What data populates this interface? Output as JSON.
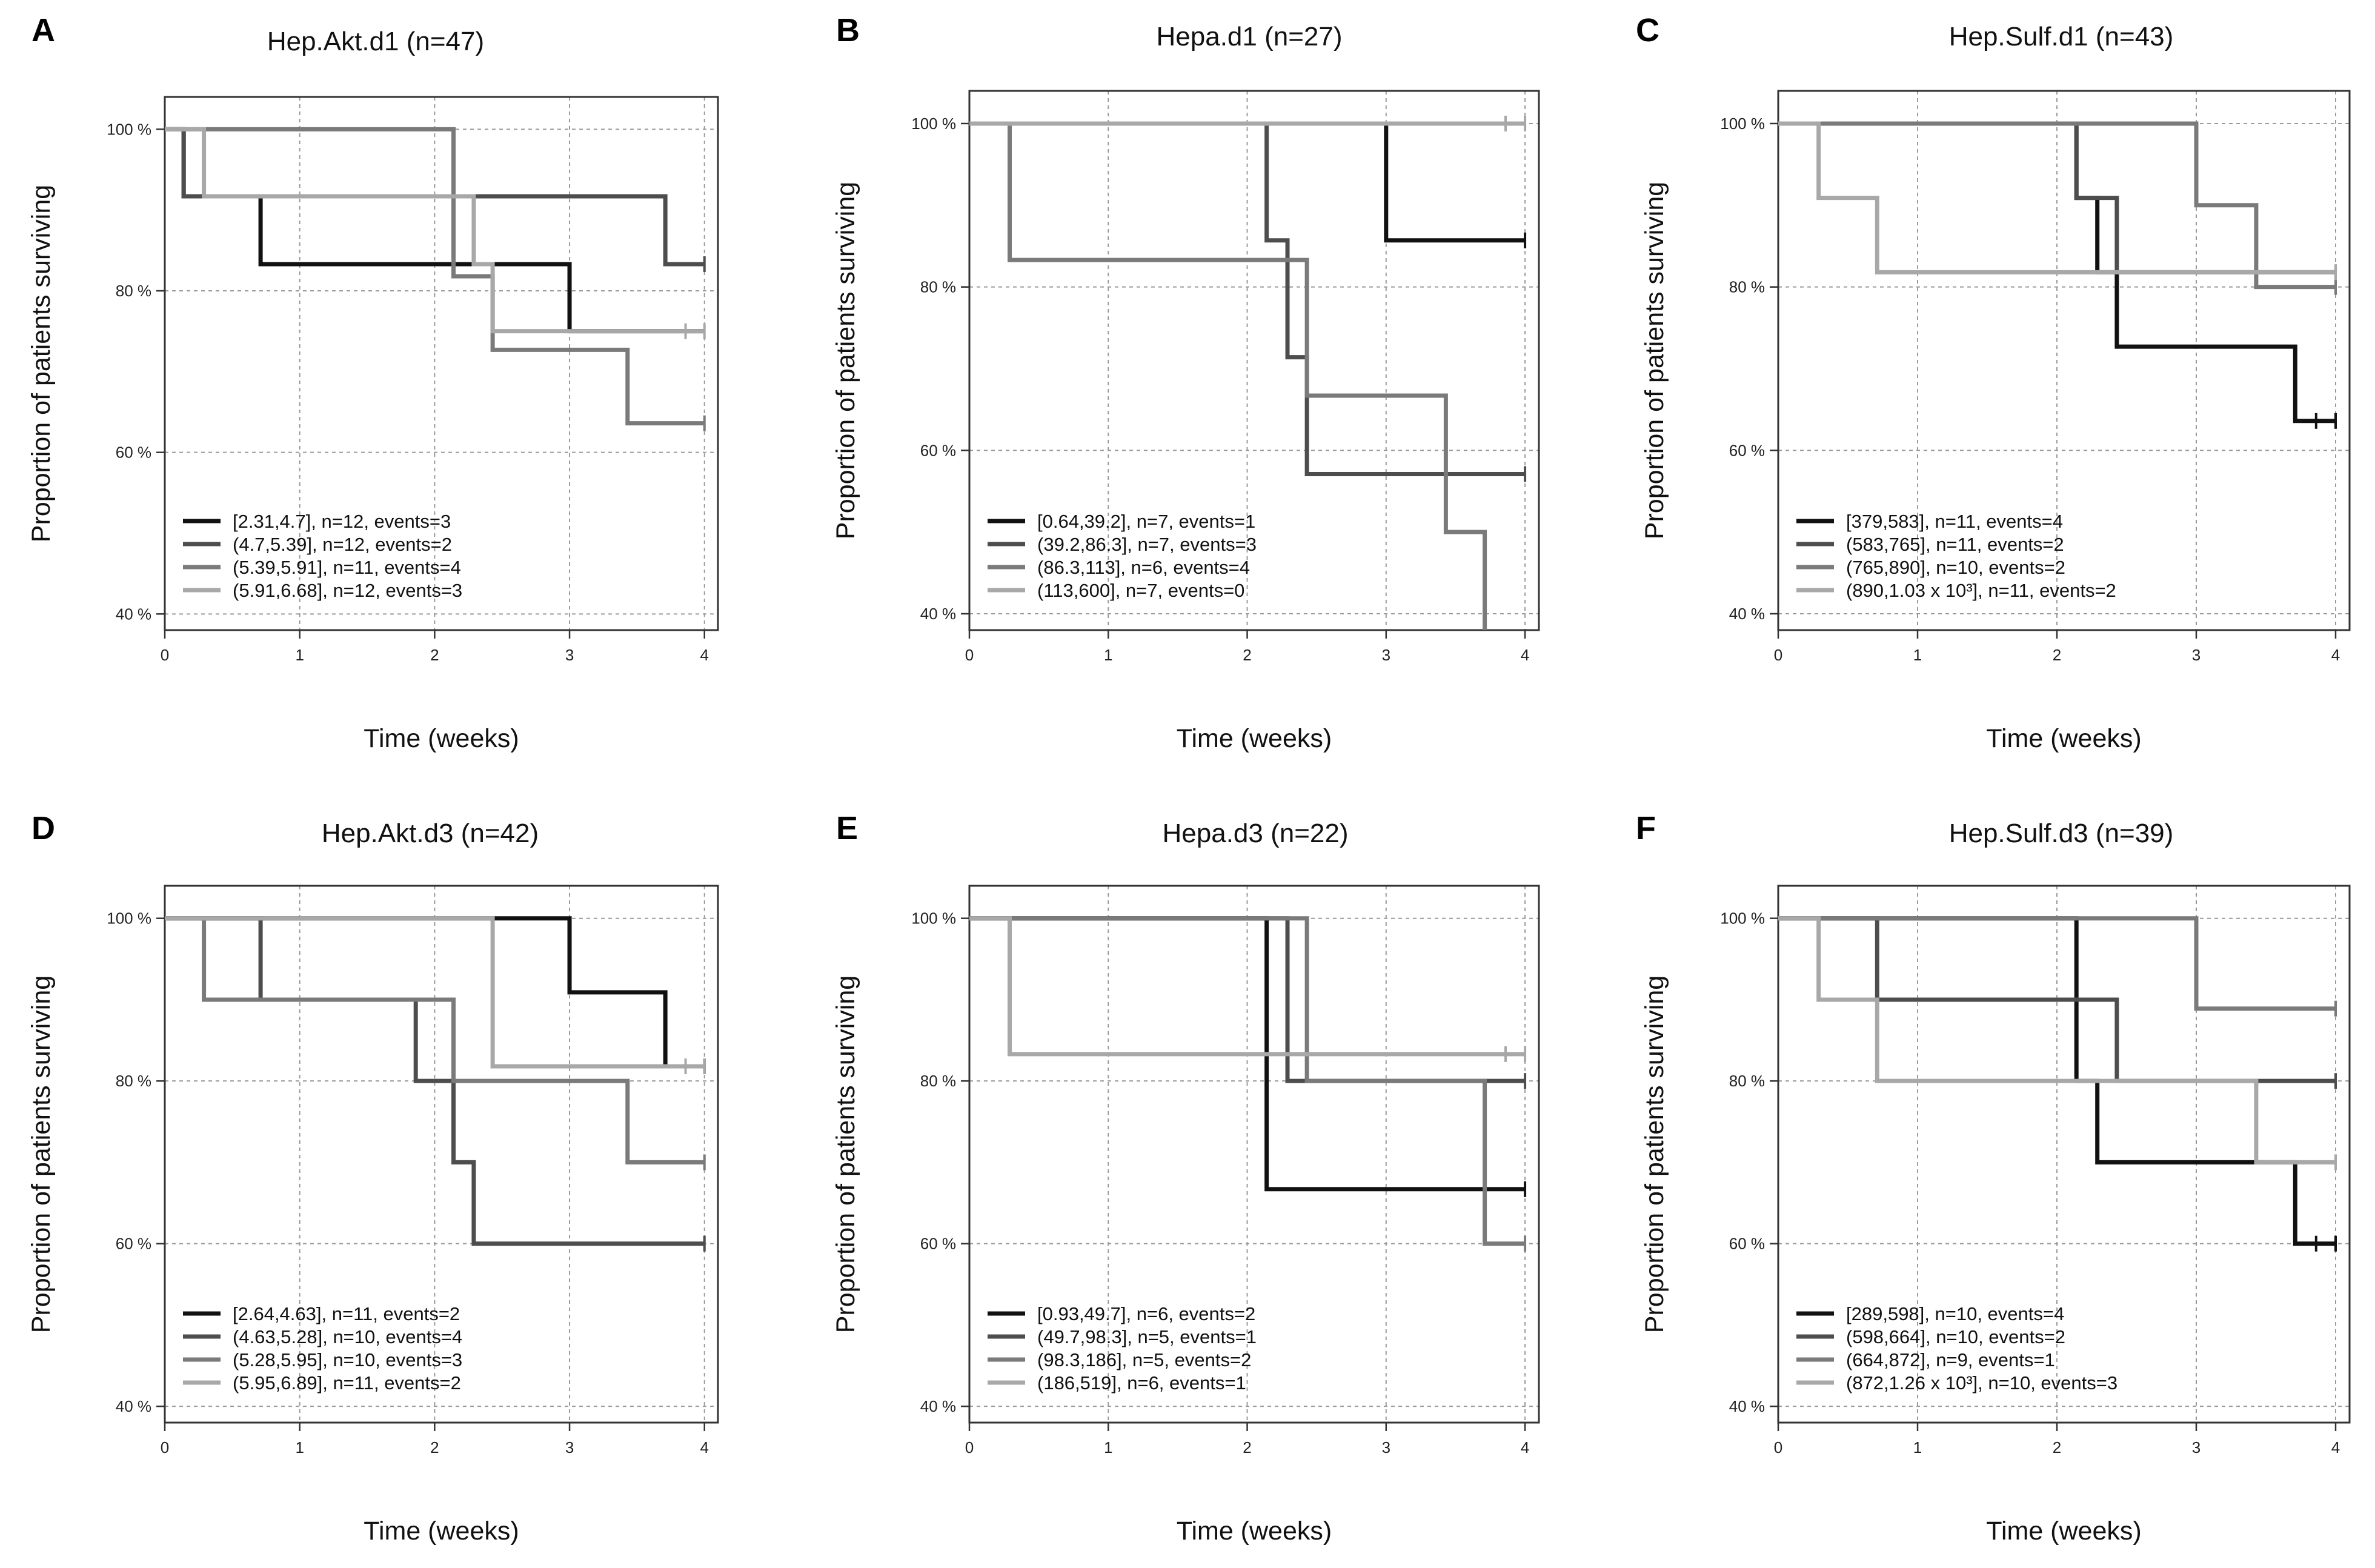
{
  "figure": {
    "x_axis_label": "Time (weeks)",
    "y_axis_label": "Proportion of patients surviving"
  },
  "chart_data": [
    {
      "type": "line",
      "subtype": "kaplan-meier",
      "letter": "A",
      "title": "Hep.Akt.d1  (n=47)",
      "xlabel": "Time (weeks)",
      "ylabel": "Proportion of patients surviving",
      "xlim": [
        0,
        4.1
      ],
      "ylim": [
        0.38,
        1.04
      ],
      "x_ticks": [
        "0",
        "1",
        "2",
        "3",
        "4"
      ],
      "y_ticks": [
        "40 %",
        "60 %",
        "80 %",
        "100 %"
      ],
      "legend_position": "bottom-left",
      "series": [
        {
          "name": "[2.31,4.7], n=12, events=3",
          "color": "#111111",
          "points": [
            [
              0,
              1.0
            ],
            [
              0.14,
              0.917
            ],
            [
              0.71,
              0.833
            ],
            [
              3.0,
              0.75
            ],
            [
              4.0,
              0.75
            ]
          ],
          "censored": []
        },
        {
          "name": "(4.7,5.39], n=12, events=2",
          "color": "#4d4d4d",
          "points": [
            [
              0,
              1.0
            ],
            [
              0.14,
              0.917
            ],
            [
              3.71,
              0.833
            ],
            [
              4.0,
              0.833
            ]
          ],
          "censored": [
            4.0
          ]
        },
        {
          "name": "(5.39,5.91], n=11, events=4",
          "color": "#7a7a7a",
          "points": [
            [
              0,
              1.0
            ],
            [
              2.14,
              0.818
            ],
            [
              2.43,
              0.727
            ],
            [
              3.43,
              0.636
            ],
            [
              4.0,
              0.636
            ]
          ],
          "censored": [
            4.0
          ]
        },
        {
          "name": "(5.91,6.68], n=12, events=3",
          "color": "#a8a8a8",
          "points": [
            [
              0,
              1.0
            ],
            [
              0.29,
              0.917
            ],
            [
              2.29,
              0.833
            ],
            [
              2.43,
              0.75
            ],
            [
              4.0,
              0.75
            ]
          ],
          "censored": [
            3.86,
            4.0
          ]
        }
      ]
    },
    {
      "type": "line",
      "subtype": "kaplan-meier",
      "letter": "B",
      "title": "Hepa.d1  (n=27)",
      "xlabel": "Time (weeks)",
      "ylabel": "Proportion of patients surviving",
      "xlim": [
        0,
        4.1
      ],
      "ylim": [
        0.38,
        1.04
      ],
      "x_ticks": [
        "0",
        "1",
        "2",
        "3",
        "4"
      ],
      "y_ticks": [
        "40 %",
        "60 %",
        "80 %",
        "100 %"
      ],
      "legend_position": "bottom-left",
      "series": [
        {
          "name": "[0.64,39.2], n=7, events=1",
          "color": "#111111",
          "points": [
            [
              0,
              1.0
            ],
            [
              3.0,
              0.857
            ],
            [
              4.0,
              0.857
            ]
          ],
          "censored": [
            4.0
          ]
        },
        {
          "name": "(39.2,86.3], n=7, events=3",
          "color": "#4d4d4d",
          "points": [
            [
              0,
              1.0
            ],
            [
              2.14,
              0.857
            ],
            [
              2.29,
              0.714
            ],
            [
              2.43,
              0.571
            ],
            [
              4.0,
              0.571
            ]
          ],
          "censored": [
            4.0
          ]
        },
        {
          "name": "(86.3,113], n=6, events=4",
          "color": "#7a7a7a",
          "points": [
            [
              0,
              1.0
            ],
            [
              0.29,
              0.833
            ],
            [
              2.43,
              0.667
            ],
            [
              3.43,
              0.5
            ],
            [
              3.71,
              0.38
            ]
          ],
          "censored": []
        },
        {
          "name": "(113,600], n=7, events=0",
          "color": "#a8a8a8",
          "points": [
            [
              0,
              1.0
            ],
            [
              4.0,
              1.0
            ]
          ],
          "censored": [
            3.86,
            4.0
          ]
        }
      ]
    },
    {
      "type": "line",
      "subtype": "kaplan-meier",
      "letter": "C",
      "title": "Hep.Sulf.d1  (n=43)",
      "xlabel": "Time (weeks)",
      "ylabel": "Proportion of patients surviving",
      "xlim": [
        0,
        4.1
      ],
      "ylim": [
        0.38,
        1.04
      ],
      "x_ticks": [
        "0",
        "1",
        "2",
        "3",
        "4"
      ],
      "y_ticks": [
        "40 %",
        "60 %",
        "80 %",
        "100 %"
      ],
      "legend_position": "bottom-left",
      "series": [
        {
          "name": "[379,583], n=11, events=4",
          "color": "#111111",
          "points": [
            [
              0,
              1.0
            ],
            [
              2.14,
              0.909
            ],
            [
              2.29,
              0.818
            ],
            [
              2.43,
              0.727
            ],
            [
              3.71,
              0.636
            ],
            [
              4.0,
              0.636
            ]
          ],
          "censored": [
            3.86,
            4.0
          ]
        },
        {
          "name": "(583,765], n=11, events=2",
          "color": "#4d4d4d",
          "points": [
            [
              0,
              1.0
            ],
            [
              2.14,
              0.909
            ],
            [
              2.43,
              0.818
            ],
            [
              4.0,
              0.818
            ]
          ],
          "censored": [
            4.0
          ]
        },
        {
          "name": "(765,890], n=10, events=2",
          "color": "#7a7a7a",
          "points": [
            [
              0,
              1.0
            ],
            [
              3.0,
              0.9
            ],
            [
              3.43,
              0.8
            ],
            [
              4.0,
              0.8
            ]
          ],
          "censored": [
            4.0
          ]
        },
        {
          "name": "(890,1.03 x 10³], n=11, events=2",
          "color": "#a8a8a8",
          "points": [
            [
              0,
              1.0
            ],
            [
              0.29,
              0.909
            ],
            [
              0.71,
              0.818
            ],
            [
              4.0,
              0.818
            ]
          ],
          "censored": [
            4.0
          ]
        }
      ]
    },
    {
      "type": "line",
      "subtype": "kaplan-meier",
      "letter": "D",
      "title": "Hep.Akt.d3  (n=42)",
      "xlabel": "Time (weeks)",
      "ylabel": "Proportion of patients surviving",
      "xlim": [
        0,
        4.1
      ],
      "ylim": [
        0.38,
        1.04
      ],
      "x_ticks": [
        "0",
        "1",
        "2",
        "3",
        "4"
      ],
      "y_ticks": [
        "40 %",
        "60 %",
        "80 %",
        "100 %"
      ],
      "legend_position": "bottom-left",
      "series": [
        {
          "name": "[2.64,4.63], n=11, events=2",
          "color": "#111111",
          "points": [
            [
              0,
              1.0
            ],
            [
              3.0,
              0.909
            ],
            [
              3.71,
              0.818
            ],
            [
              4.0,
              0.818
            ]
          ],
          "censored": [
            4.0
          ]
        },
        {
          "name": "(4.63,5.28], n=10, events=4",
          "color": "#4d4d4d",
          "points": [
            [
              0,
              1.0
            ],
            [
              0.71,
              0.9
            ],
            [
              1.86,
              0.8
            ],
            [
              2.14,
              0.7
            ],
            [
              2.29,
              0.6
            ],
            [
              4.0,
              0.6
            ]
          ],
          "censored": [
            4.0
          ]
        },
        {
          "name": "(5.28,5.95], n=10, events=3",
          "color": "#7a7a7a",
          "points": [
            [
              0,
              1.0
            ],
            [
              0.29,
              0.9
            ],
            [
              2.14,
              0.8
            ],
            [
              3.43,
              0.7
            ],
            [
              4.0,
              0.7
            ]
          ],
          "censored": [
            4.0
          ]
        },
        {
          "name": "(5.95,6.89], n=11, events=2",
          "color": "#a8a8a8",
          "points": [
            [
              0,
              1.0
            ],
            [
              2.43,
              0.818
            ],
            [
              4.0,
              0.818
            ]
          ],
          "censored": [
            3.86,
            4.0
          ]
        }
      ]
    },
    {
      "type": "line",
      "subtype": "kaplan-meier",
      "letter": "E",
      "title": "Hepa.d3  (n=22)",
      "xlabel": "Time (weeks)",
      "ylabel": "Proportion of patients surviving",
      "xlim": [
        0,
        4.1
      ],
      "ylim": [
        0.38,
        1.04
      ],
      "x_ticks": [
        "0",
        "1",
        "2",
        "3",
        "4"
      ],
      "y_ticks": [
        "40 %",
        "60 %",
        "80 %",
        "100 %"
      ],
      "legend_position": "bottom-left",
      "series": [
        {
          "name": "[0.93,49.7], n=6, events=2",
          "color": "#111111",
          "points": [
            [
              0,
              1.0
            ],
            [
              2.14,
              0.667
            ],
            [
              4.0,
              0.667
            ]
          ],
          "censored": [
            4.0
          ]
        },
        {
          "name": "(49.7,98.3], n=5, events=1",
          "color": "#4d4d4d",
          "points": [
            [
              0,
              1.0
            ],
            [
              2.29,
              0.8
            ],
            [
              4.0,
              0.8
            ]
          ],
          "censored": [
            4.0
          ]
        },
        {
          "name": "(98.3,186], n=5, events=2",
          "color": "#7a7a7a",
          "points": [
            [
              0,
              1.0
            ],
            [
              2.43,
              0.8
            ],
            [
              3.71,
              0.6
            ],
            [
              4.0,
              0.6
            ]
          ],
          "censored": [
            4.0
          ]
        },
        {
          "name": "(186,519], n=6, events=1",
          "color": "#a8a8a8",
          "points": [
            [
              0,
              1.0
            ],
            [
              0.29,
              0.833
            ],
            [
              4.0,
              0.833
            ]
          ],
          "censored": [
            3.86,
            4.0
          ]
        }
      ]
    },
    {
      "type": "line",
      "subtype": "kaplan-meier",
      "letter": "F",
      "title": "Hep.Sulf.d3  (n=39)",
      "xlabel": "Time (weeks)",
      "ylabel": "Proportion of patients surviving",
      "xlim": [
        0,
        4.1
      ],
      "ylim": [
        0.38,
        1.04
      ],
      "x_ticks": [
        "0",
        "1",
        "2",
        "3",
        "4"
      ],
      "y_ticks": [
        "40 %",
        "60 %",
        "80 %",
        "100 %"
      ],
      "legend_position": "bottom-left",
      "series": [
        {
          "name": "[289,598], n=10, events=4",
          "color": "#111111",
          "points": [
            [
              0,
              1.0
            ],
            [
              2.14,
              0.8
            ],
            [
              2.29,
              0.7
            ],
            [
              3.71,
              0.6
            ],
            [
              4.0,
              0.6
            ]
          ],
          "censored": [
            3.86,
            4.0
          ]
        },
        {
          "name": "(598,664], n=10, events=2",
          "color": "#4d4d4d",
          "points": [
            [
              0,
              1.0
            ],
            [
              0.71,
              0.9
            ],
            [
              2.43,
              0.8
            ],
            [
              4.0,
              0.8
            ]
          ],
          "censored": [
            4.0
          ]
        },
        {
          "name": "(664,872], n=9, events=1",
          "color": "#7a7a7a",
          "points": [
            [
              0,
              1.0
            ],
            [
              3.0,
              0.889
            ],
            [
              4.0,
              0.889
            ]
          ],
          "censored": [
            4.0
          ]
        },
        {
          "name": "(872,1.26 x 10³], n=10, events=3",
          "color": "#a8a8a8",
          "points": [
            [
              0,
              1.0
            ],
            [
              0.29,
              0.9
            ],
            [
              0.71,
              0.8
            ],
            [
              3.43,
              0.7
            ],
            [
              4.0,
              0.7
            ]
          ],
          "censored": [
            4.0
          ]
        }
      ]
    }
  ]
}
